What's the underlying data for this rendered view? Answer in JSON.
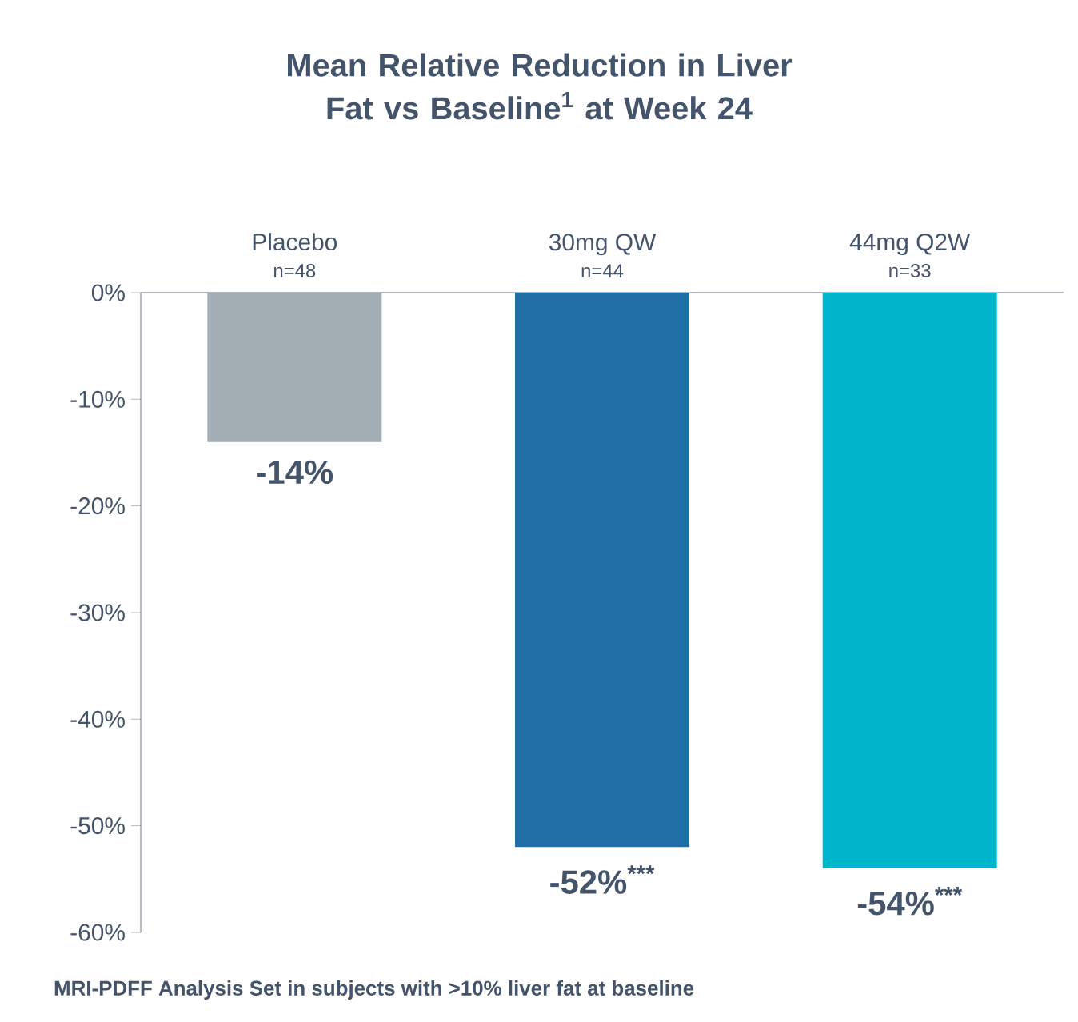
{
  "chart_data": {
    "type": "bar",
    "title": "Mean Relative Reduction in Liver Fat vs Baseline$^{1}$ at Week 24",
    "categories": [
      "Placebo",
      "30mg QW",
      "44mg Q2W"
    ],
    "values": [
      -14,
      -52,
      -54
    ],
    "colors": [
      "#a2adb4",
      "#1f6fa6",
      "#00b5cc"
    ],
    "value_labels": [
      "-14%",
      "-52%$^{***}$",
      "-54%$^{***}$"
    ],
    "ylim": [
      -60,
      0
    ],
    "yticks": [
      {
        "value": 0,
        "label": "0%"
      },
      {
        "value": -10,
        "label": "-10%"
      },
      {
        "value": -20,
        "label": "-20%"
      },
      {
        "value": -30,
        "label": "-30%"
      },
      {
        "value": -40,
        "label": "-40%"
      },
      {
        "value": -50,
        "label": "-50%"
      },
      {
        "value": -60,
        "label": "-60%"
      }
    ],
    "annotations": [
      "MRI-PDFF Analysis Set in subjects with >10% liver fat at baseline",
      "n=48",
      "n=44",
      "n=33"
    ]
  }
}
